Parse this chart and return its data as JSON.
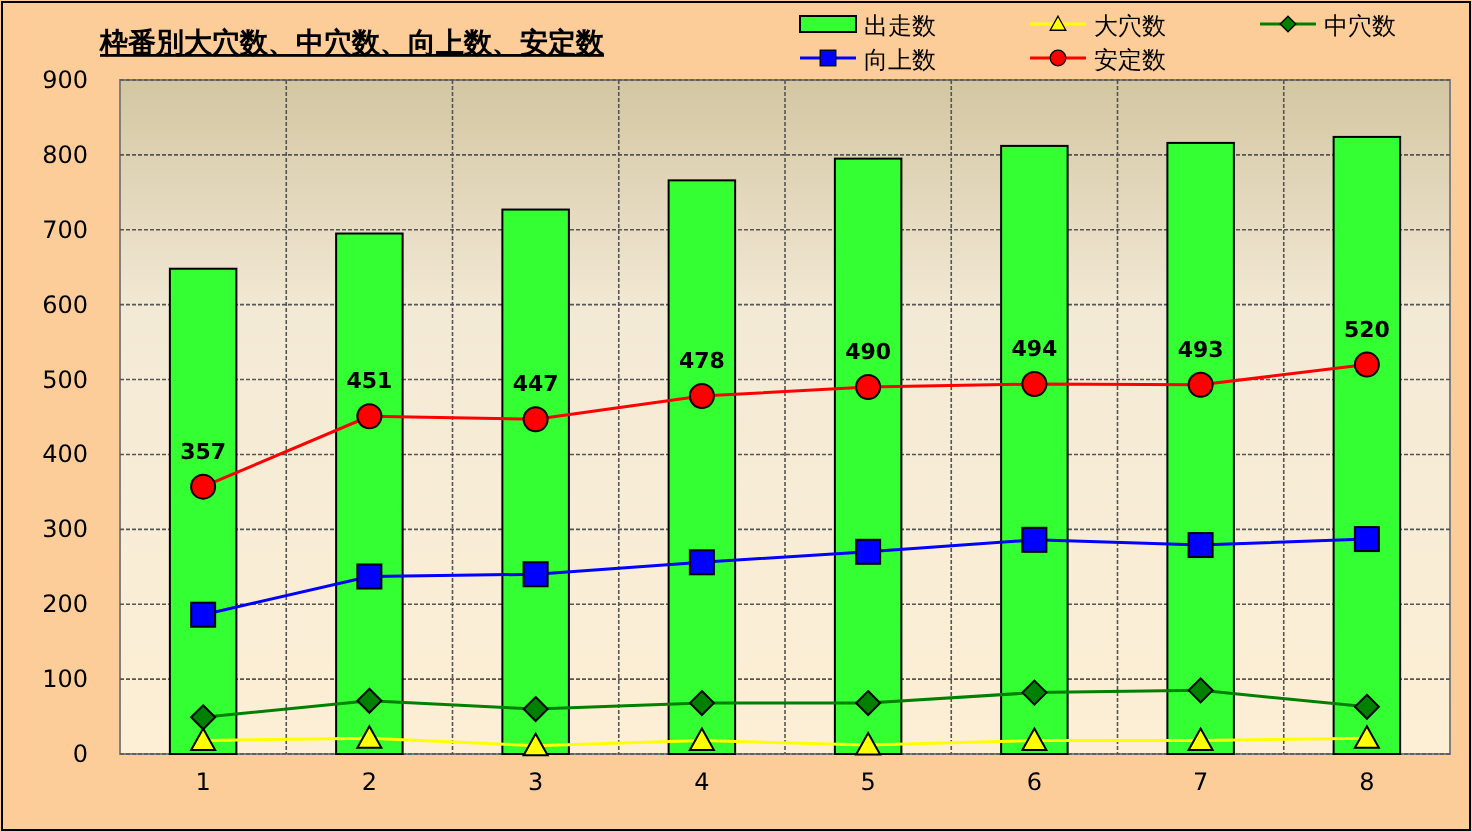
{
  "chart_data": {
    "type": "bar",
    "title": "枠番別大穴数、中穴数、向上数、安定数",
    "categories": [
      "1",
      "2",
      "3",
      "4",
      "5",
      "6",
      "7",
      "8"
    ],
    "series": [
      {
        "name": "出走数",
        "color": "#33ff33",
        "values": [
          648,
          695,
          727,
          766,
          795,
          812,
          816,
          824
        ]
      },
      {
        "name": "大穴数",
        "type": "line",
        "marker": "triangle",
        "color": "#ffff00",
        "values": [
          18,
          21,
          11,
          18,
          12,
          18,
          18,
          21
        ]
      },
      {
        "name": "中穴数",
        "type": "line",
        "marker": "diamond",
        "color": "#008000",
        "values": [
          49,
          71,
          60,
          68,
          68,
          82,
          85,
          63
        ]
      },
      {
        "name": "向上数",
        "type": "line",
        "marker": "square",
        "color": "#0000ff",
        "values": [
          186,
          237,
          240,
          256,
          270,
          286,
          279,
          287
        ]
      },
      {
        "name": "安定数",
        "type": "line",
        "marker": "circle",
        "color": "#ff0000",
        "values": [
          357,
          451,
          447,
          478,
          490,
          494,
          493,
          520
        ],
        "value_labels": [
          "357",
          "451",
          "447",
          "478",
          "490",
          "494",
          "493",
          "520"
        ]
      }
    ],
    "ylim": [
      0,
      900
    ],
    "yticks": [
      0,
      100,
      200,
      300,
      400,
      500,
      600,
      700,
      800,
      900
    ],
    "grid": true,
    "legend": "top right"
  }
}
